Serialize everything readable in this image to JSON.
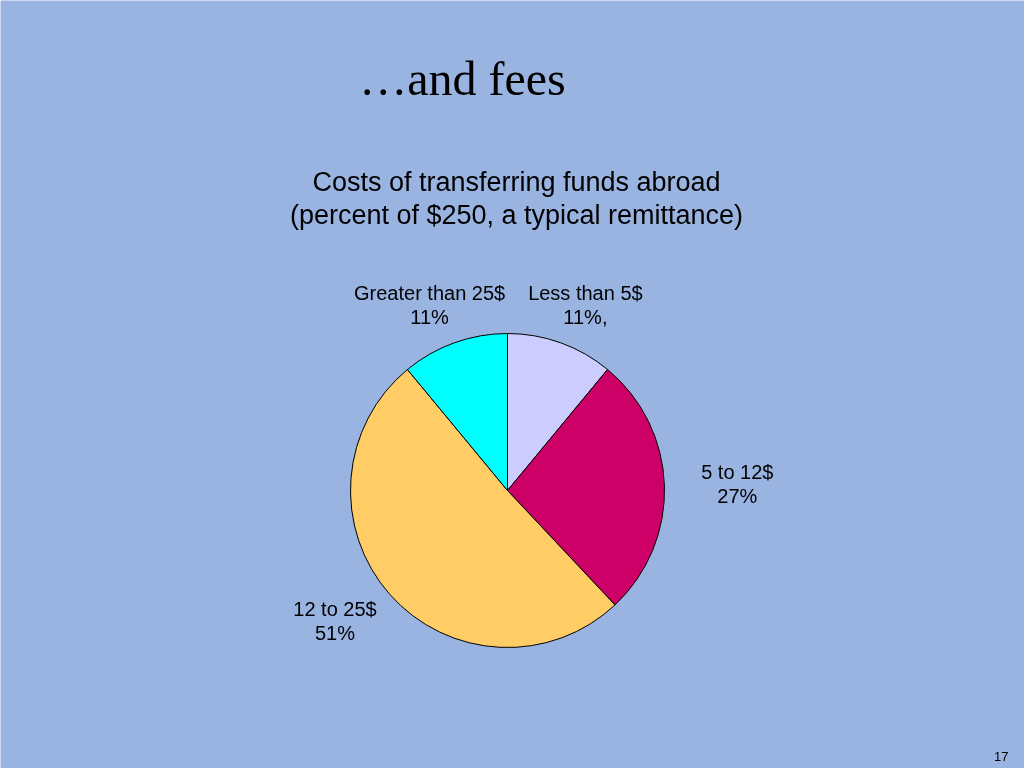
{
  "chart_data": {
    "type": "pie",
    "title": "…and fees",
    "subtitle": "Costs of transferring funds abroad\n(percent of $250, a typical remittance)",
    "categories": [
      "Less than 5$",
      "5 to 12$",
      "12 to 25$",
      "Greater than 25$"
    ],
    "values": [
      11,
      27,
      51,
      11
    ],
    "value_labels": [
      "11%,",
      "27%",
      "51%",
      "11%"
    ],
    "colors": [
      "#ccccff",
      "#cc0066",
      "#ffcc66",
      "#00ffff"
    ],
    "annotations": [
      "17"
    ]
  }
}
